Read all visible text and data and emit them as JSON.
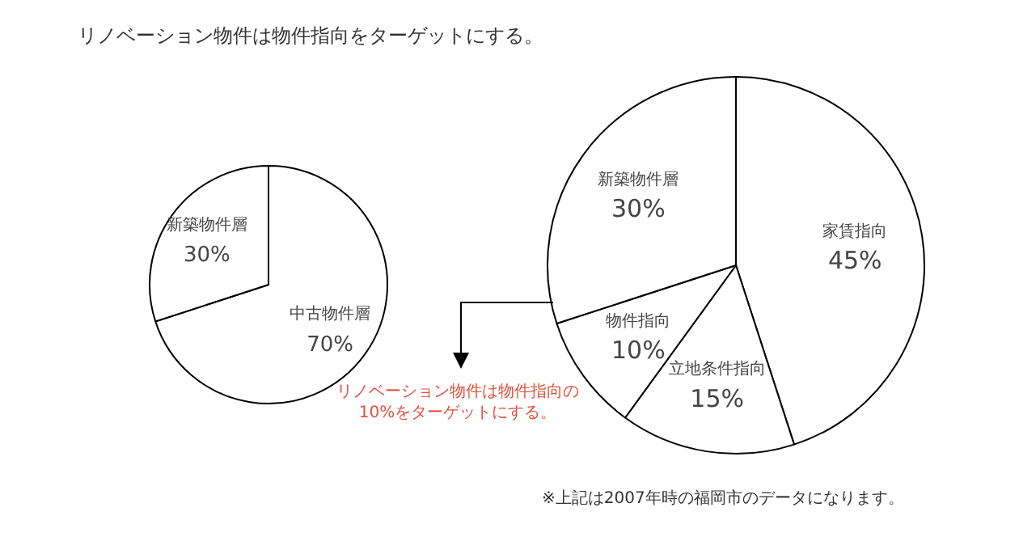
{
  "chart_data": [
    {
      "type": "pie",
      "title": "リノベーション物件は物件指向をターゲットにする。",
      "categories": [
        "中古物件層",
        "新築物件層"
      ],
      "values": [
        70,
        30
      ],
      "value_labels": [
        "70%",
        "30%"
      ],
      "colors": [
        "#ffffff",
        "#ffffff"
      ],
      "legend": false
    },
    {
      "type": "pie",
      "categories": [
        "家賃指向",
        "立地条件指向",
        "物件指向",
        "新築物件層"
      ],
      "values": [
        45,
        15,
        10,
        30
      ],
      "value_labels": [
        "45%",
        "15%",
        "10%",
        "30%"
      ],
      "colors": [
        "#ffffff",
        "#ffffff",
        "#ffffff",
        "#ffffff"
      ],
      "legend": false,
      "annotations": [
        "リノベーション物件は物件指向の10%をターゲットにする。",
        "※上記は2007年時の福岡市のデータになります。"
      ]
    }
  ]
}
